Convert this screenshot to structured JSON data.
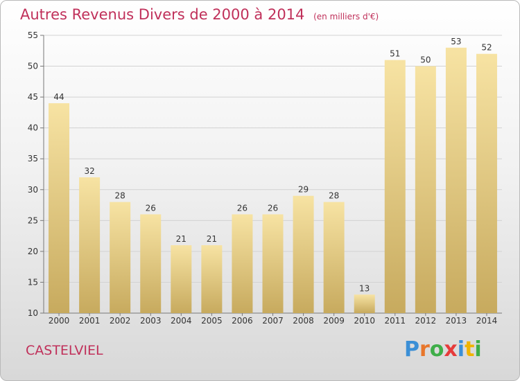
{
  "header": {
    "title": "Autres Revenus Divers de 2000 à 2014",
    "unit": "(en milliers d'€)"
  },
  "footer": {
    "place": "CASTELVIEL",
    "logo": "Proxiti"
  },
  "colors": {
    "accent": "#c0305a",
    "bar_top": "#f7e3a3",
    "bar_bottom": "#c7aa5e"
  },
  "chart_data": {
    "type": "bar",
    "categories": [
      "2000",
      "2001",
      "2002",
      "2003",
      "2004",
      "2005",
      "2006",
      "2007",
      "2008",
      "2009",
      "2010",
      "2011",
      "2012",
      "2013",
      "2014"
    ],
    "values": [
      44,
      32,
      28,
      26,
      21,
      21,
      26,
      26,
      29,
      28,
      13,
      51,
      50,
      53,
      52
    ],
    "ylim": [
      10,
      55
    ],
    "yticks": [
      10,
      15,
      20,
      25,
      30,
      35,
      40,
      45,
      50,
      55
    ],
    "grid": true
  }
}
